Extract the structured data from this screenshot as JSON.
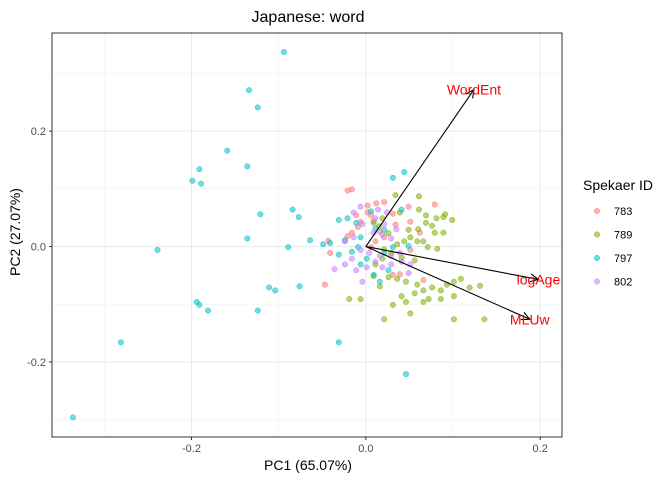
{
  "chart_data": {
    "type": "scatter",
    "title": "Japanese: word",
    "xlabel": "PC1 (65.07%)",
    "ylabel": "PC2 (27.07%)",
    "xlim": [
      -0.36,
      0.225
    ],
    "ylim": [
      -0.33,
      0.37
    ],
    "x_ticks": [
      -0.2,
      0.0,
      0.2
    ],
    "x_tick_labels": [
      "-0.2",
      "0.0",
      "0.2"
    ],
    "y_ticks": [
      -0.2,
      0.0,
      0.2
    ],
    "y_tick_labels": [
      "-0.2",
      "0.0",
      "0.2"
    ],
    "grid": true,
    "legend": {
      "title": "Spekaer ID",
      "placement": "right"
    },
    "loading_color": "#ff0000",
    "series": [
      {
        "name": "783",
        "color": "#F8766D",
        "points": [
          [
            -0.021,
            0.097
          ],
          [
            -0.016,
            0.099
          ],
          [
            0.002,
            0.071
          ],
          [
            0.012,
            0.075
          ],
          [
            0.021,
            0.077
          ],
          [
            0.049,
            0.069
          ],
          [
            0.079,
            0.073
          ],
          [
            0.002,
            0.059
          ],
          [
            0.031,
            0.057
          ],
          [
            -0.011,
            0.054
          ],
          [
            0.006,
            0.054
          ],
          [
            -0.006,
            0.043
          ],
          [
            0.009,
            0.044
          ],
          [
            -0.009,
            0.034
          ],
          [
            0.034,
            0.038
          ],
          [
            0.051,
            0.043
          ],
          [
            -0.016,
            0.024
          ],
          [
            0.016,
            0.026
          ],
          [
            0.062,
            0.024
          ],
          [
            0.021,
            0.016
          ],
          [
            0.011,
            0.009
          ],
          [
            -0.021,
            0.018
          ],
          [
            -0.041,
            -0.011
          ],
          [
            -0.047,
            -0.066
          ],
          [
            0.006,
            -0.001
          ],
          [
            0.051,
            -0.006
          ],
          [
            0.066,
            -0.058
          ],
          [
            0.039,
            -0.048
          ],
          [
            0.031,
            -0.049
          ],
          [
            -0.043,
            0.01
          ]
        ]
      },
      {
        "name": "789",
        "color": "#7CAE00",
        "points": [
          [
            0.009,
            0.041
          ],
          [
            0.019,
            0.049
          ],
          [
            0.039,
            0.059
          ],
          [
            0.061,
            0.064
          ],
          [
            0.069,
            0.054
          ],
          [
            0.081,
            0.049
          ],
          [
            0.089,
            0.051
          ],
          [
            0.069,
            0.041
          ],
          [
            0.076,
            0.036
          ],
          [
            0.049,
            0.029
          ],
          [
            0.079,
            0.024
          ],
          [
            0.089,
            0.024
          ],
          [
            0.051,
            0.016
          ],
          [
            0.059,
            0.009
          ],
          [
            0.066,
            0.009
          ],
          [
            0.044,
            0.009
          ],
          [
            0.036,
            0.004
          ],
          [
            0.071,
            -0.001
          ],
          [
            0.082,
            -0.004
          ],
          [
            0.029,
            -0.011
          ],
          [
            0.041,
            -0.019
          ],
          [
            0.056,
            -0.024
          ],
          [
            0.019,
            -0.021
          ],
          [
            0.011,
            -0.031
          ],
          [
            0.009,
            -0.051
          ],
          [
            0.026,
            -0.053
          ],
          [
            0.036,
            -0.056
          ],
          [
            0.046,
            -0.061
          ],
          [
            0.059,
            -0.066
          ],
          [
            0.066,
            -0.076
          ],
          [
            0.076,
            -0.071
          ],
          [
            0.086,
            -0.076
          ],
          [
            0.093,
            -0.066
          ],
          [
            0.101,
            -0.061
          ],
          [
            0.109,
            -0.056
          ],
          [
            0.119,
            -0.071
          ],
          [
            0.131,
            -0.068
          ],
          [
            0.101,
            -0.086
          ],
          [
            0.086,
            -0.091
          ],
          [
            0.072,
            -0.091
          ],
          [
            0.066,
            -0.096
          ],
          [
            0.046,
            -0.096
          ],
          [
            0.041,
            -0.086
          ],
          [
            0.051,
            -0.116
          ],
          [
            0.031,
            -0.101
          ],
          [
            -0.019,
            -0.091
          ],
          [
            0.021,
            -0.126
          ],
          [
            -0.006,
            -0.091
          ],
          [
            0.101,
            -0.126
          ],
          [
            0.136,
            -0.126
          ],
          [
            0.026,
            0.023
          ],
          [
            0.034,
            0.089
          ],
          [
            0.061,
            0.087
          ],
          [
            0.091,
            0.056
          ],
          [
            0.099,
            0.046
          ],
          [
            0.016,
            -0.069
          ],
          [
            0.056,
            -0.081
          ],
          [
            0.021,
            -0.005
          ],
          [
            0.015,
            0.035
          ],
          [
            0.06,
            0.03
          ]
        ]
      },
      {
        "name": "797",
        "color": "#00BFC4",
        "points": [
          [
            -0.094,
            0.337
          ],
          [
            -0.134,
            0.271
          ],
          [
            -0.124,
            0.241
          ],
          [
            -0.159,
            0.166
          ],
          [
            -0.136,
            0.139
          ],
          [
            -0.191,
            0.134
          ],
          [
            -0.199,
            0.114
          ],
          [
            -0.189,
            0.109
          ],
          [
            -0.121,
            0.056
          ],
          [
            -0.136,
            0.014
          ],
          [
            -0.084,
            0.064
          ],
          [
            -0.077,
            0.051
          ],
          [
            -0.064,
            0.011
          ],
          [
            -0.089,
            -0.001
          ],
          [
            -0.239,
            -0.006
          ],
          [
            -0.049,
            0.004
          ],
          [
            -0.041,
            0.006
          ],
          [
            -0.031,
            -0.014
          ],
          [
            -0.016,
            -0.009
          ],
          [
            -0.009,
            -0.001
          ],
          [
            -0.024,
            0.011
          ],
          [
            -0.031,
            0.046
          ],
          [
            -0.021,
            0.049
          ],
          [
            -0.011,
            0.041
          ],
          [
            0.011,
            0.031
          ],
          [
            0.021,
            0.029
          ],
          [
            0.041,
            0.064
          ],
          [
            0.031,
            0.119
          ],
          [
            0.044,
            0.129
          ],
          [
            -0.076,
            -0.069
          ],
          [
            -0.111,
            -0.071
          ],
          [
            -0.104,
            -0.076
          ],
          [
            -0.194,
            -0.096
          ],
          [
            -0.191,
            -0.101
          ],
          [
            -0.181,
            -0.111
          ],
          [
            -0.124,
            -0.111
          ],
          [
            -0.281,
            -0.166
          ],
          [
            -0.336,
            -0.296
          ],
          [
            0.046,
            -0.221
          ],
          [
            -0.031,
            -0.166
          ],
          [
            0.001,
            -0.021
          ],
          [
            -0.006,
            -0.031
          ],
          [
            0.021,
            -0.011
          ],
          [
            0.031,
            -0.001
          ],
          [
            0.049,
            0.001
          ],
          [
            0.009,
            -0.049
          ],
          [
            0.016,
            -0.061
          ],
          [
            0.026,
            -0.041
          ],
          [
            -0.006,
            0.016
          ],
          [
            0.006,
            0.061
          ]
        ]
      },
      {
        "name": "802",
        "color": "#C77CFF",
        "points": [
          [
            -0.014,
            0.059
          ],
          [
            -0.006,
            0.069
          ],
          [
            0.014,
            0.064
          ],
          [
            0.024,
            0.059
          ],
          [
            0.011,
            0.049
          ],
          [
            -0.004,
            0.039
          ],
          [
            0.009,
            0.024
          ],
          [
            0.019,
            0.021
          ],
          [
            0.029,
            0.014
          ],
          [
            -0.014,
            0.016
          ],
          [
            -0.024,
            0.009
          ],
          [
            -0.006,
            -0.006
          ],
          [
            0.004,
            -0.011
          ],
          [
            0.016,
            -0.016
          ],
          [
            0.029,
            -0.016
          ],
          [
            0.039,
            -0.011
          ],
          [
            -0.016,
            -0.021
          ],
          [
            -0.024,
            -0.031
          ],
          [
            -0.036,
            -0.039
          ],
          [
            -0.011,
            -0.041
          ],
          [
            0.001,
            -0.036
          ],
          [
            0.011,
            -0.026
          ],
          [
            0.019,
            -0.036
          ],
          [
            0.029,
            -0.031
          ],
          [
            0.041,
            -0.026
          ],
          [
            0.051,
            -0.031
          ],
          [
            -0.004,
            -0.061
          ],
          [
            0.049,
            -0.046
          ],
          [
            0.021,
            0.039
          ],
          [
            0.035,
            0.03
          ]
        ]
      }
    ],
    "loadings": [
      {
        "label": "WordEnt",
        "x": 0.124,
        "y": 0.272
      },
      {
        "label": "logAge",
        "x": 0.198,
        "y": -0.057
      },
      {
        "label": "MLUw",
        "x": 0.188,
        "y": -0.126
      }
    ]
  }
}
